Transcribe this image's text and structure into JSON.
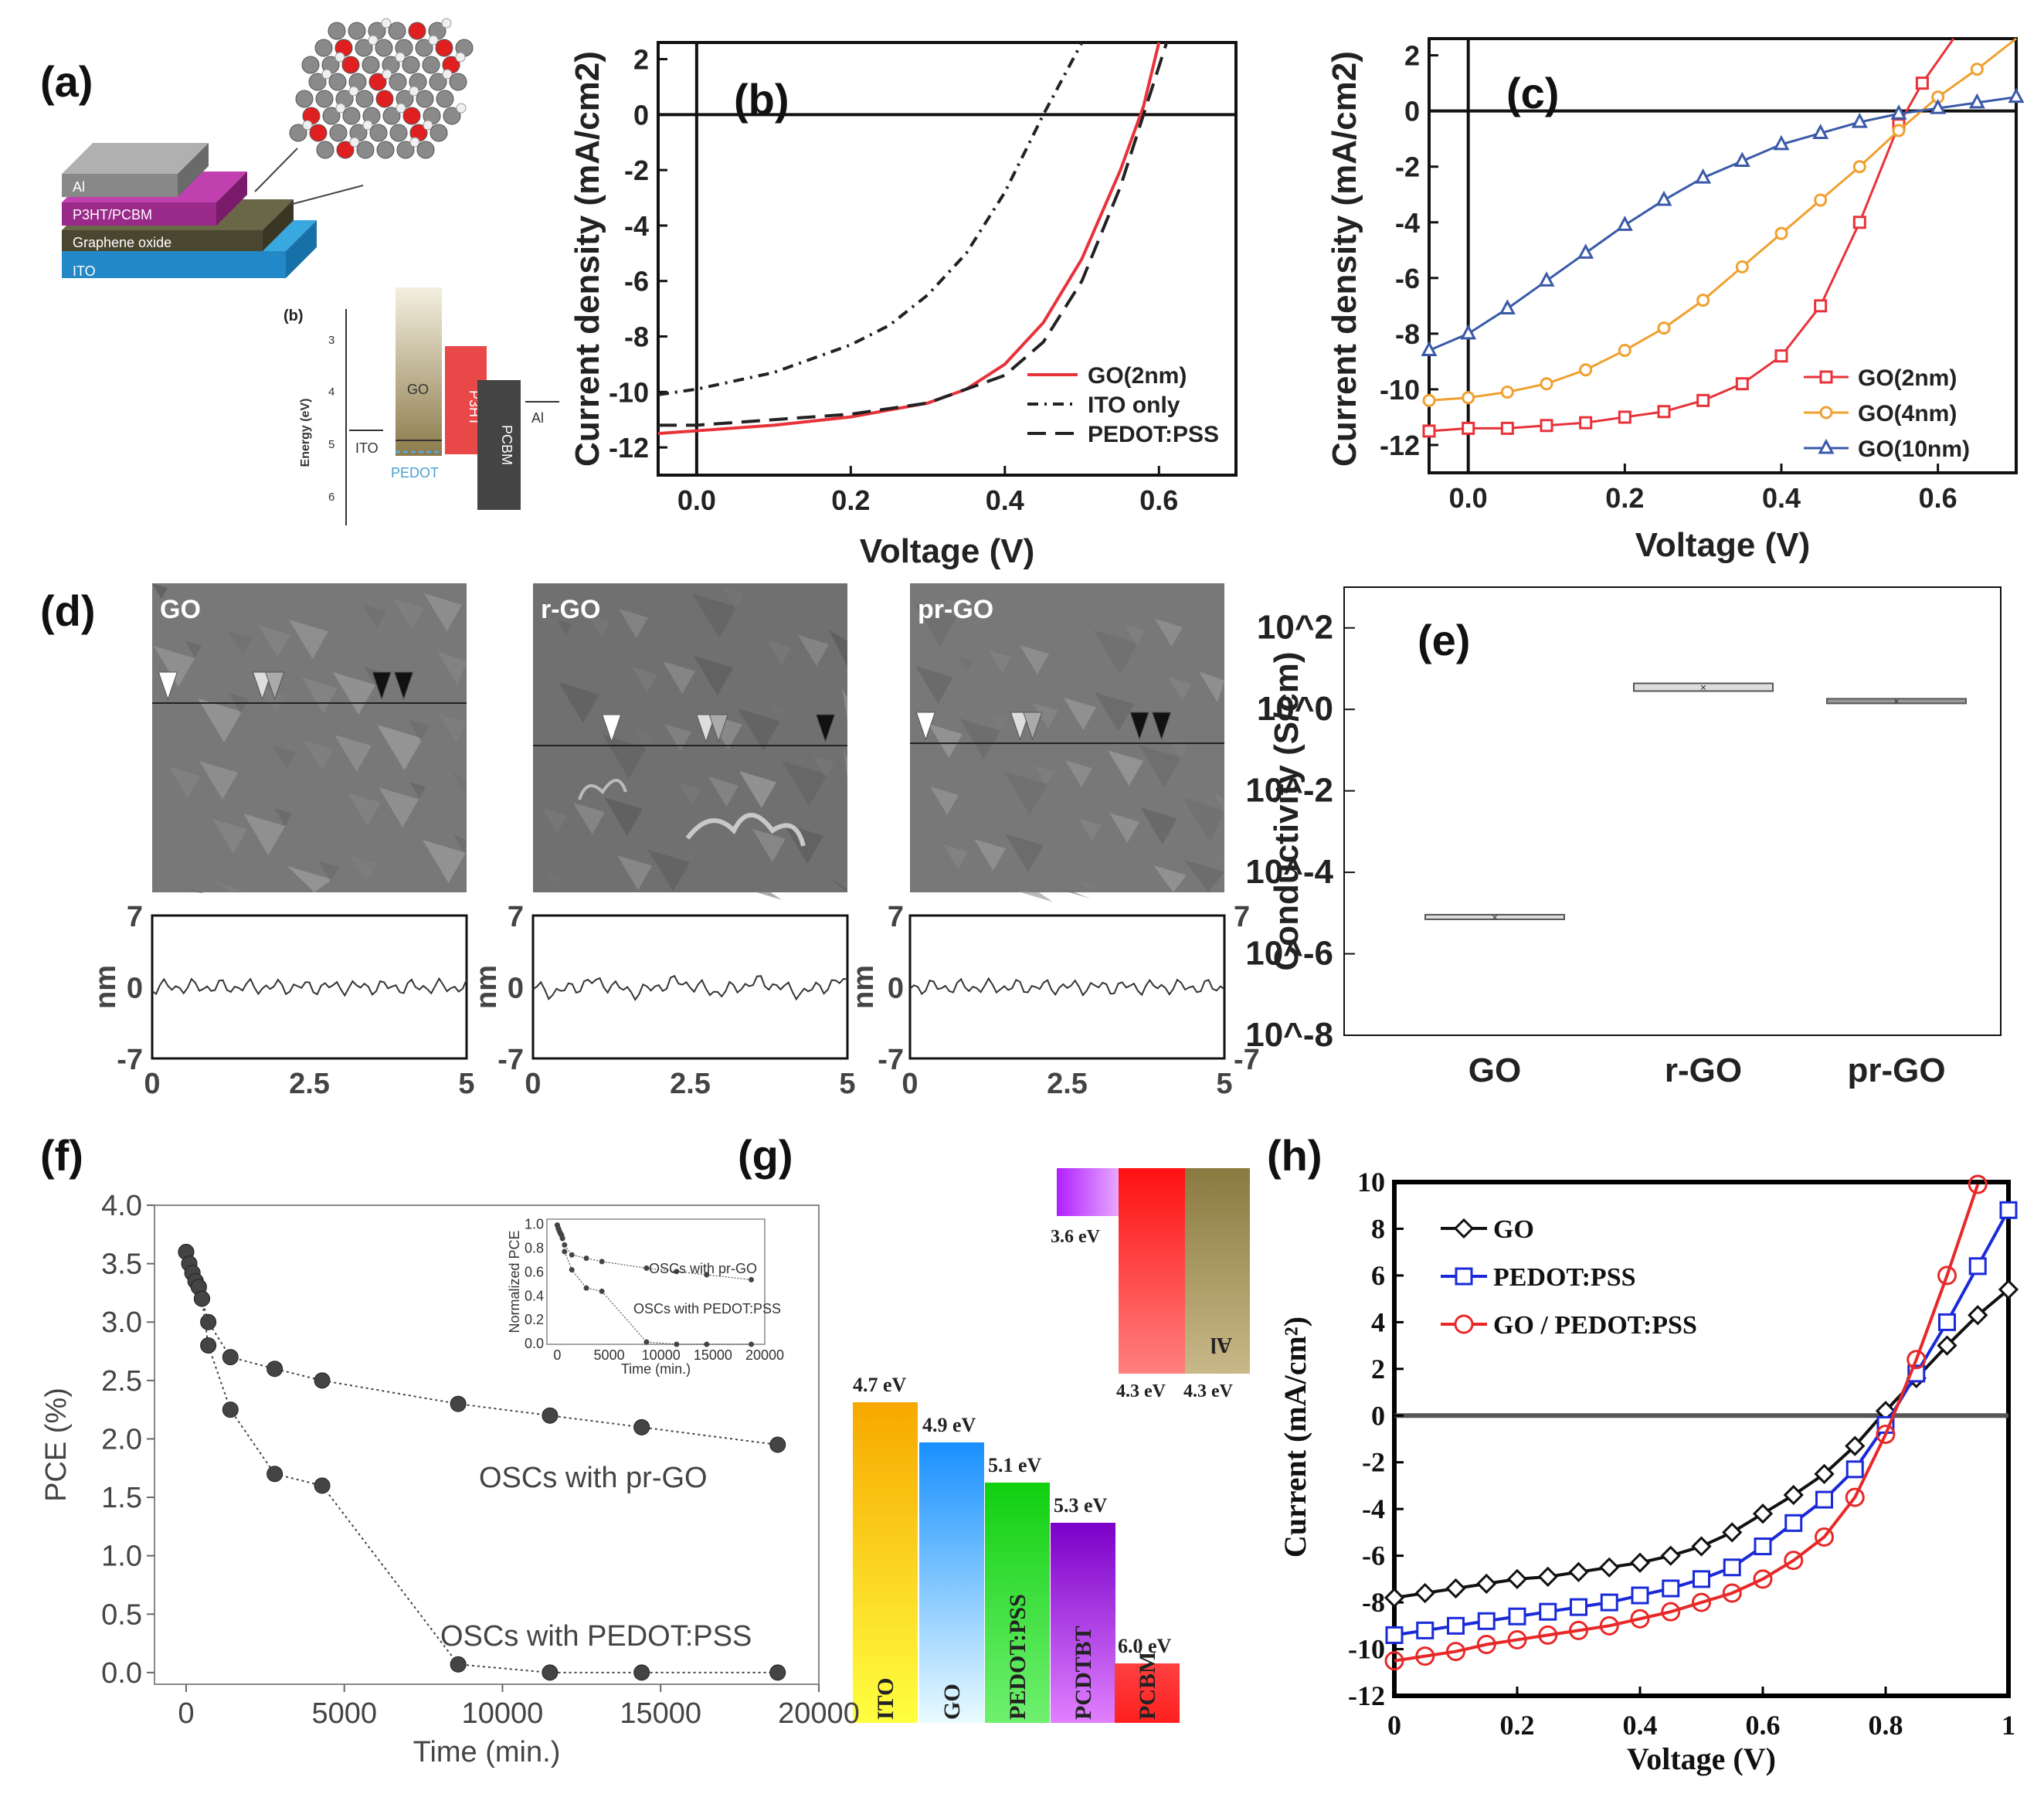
{
  "colors": {
    "red": "#e8323a",
    "orange": "#f0a030",
    "blue": "#3a5aa8",
    "black": "#111111",
    "boxblue": "#1a2ad8",
    "boxred": "#e82828"
  },
  "panel_a": {
    "label": "(a)",
    "layers": [
      "Al",
      "P3HT/PCBM",
      "Graphene oxide",
      "ITO"
    ],
    "sub_label": "(b)",
    "energy_axis_label": "Energy (eV)",
    "energy_ticks": [
      "3",
      "4",
      "5",
      "6"
    ],
    "bars": [
      "ITO",
      "GO",
      "PEDOT",
      "P3HT",
      "PCBM",
      "Al"
    ]
  },
  "panel_d": {
    "label": "(d)",
    "images": [
      "GO",
      "r-GO",
      "pr-GO"
    ],
    "ylabel": "nm",
    "yticks": [
      "7",
      "0",
      "-7"
    ],
    "xticks": [
      "0",
      "2.5",
      "5"
    ]
  },
  "panel_g": {
    "label": "(g)",
    "bars": [
      {
        "name": "ITO",
        "energy": "4.7 eV",
        "level": 4.7
      },
      {
        "name": "GO",
        "energy": "4.9 eV",
        "level": 4.9
      },
      {
        "name": "PEDOT:PSS",
        "energy": "5.1 eV",
        "level": 5.1
      },
      {
        "name": "PCDTBT",
        "energy": "5.3 eV",
        "level": 5.3
      },
      {
        "name": "PCBM",
        "energy": "6.0 eV",
        "level": 6.0
      }
    ],
    "top_bars": [
      {
        "name": "",
        "energy": "3.6 eV",
        "level": 3.6
      },
      {
        "name": "",
        "energy": "4.3 eV",
        "level": 4.3
      },
      {
        "name": "Al",
        "energy": "4.3 eV",
        "level": 4.3
      }
    ]
  },
  "chart_data": [
    {
      "id": "b",
      "label": "(b)",
      "type": "line",
      "title": "",
      "xlabel": "Voltage (V)",
      "ylabel": "Current density (mA/cm2)",
      "xlim": [
        -0.05,
        0.7
      ],
      "ylim": [
        -13,
        2.6
      ],
      "xticks": [
        "0.0",
        "0.2",
        "0.4",
        "0.6"
      ],
      "yticks": [
        "2",
        "0",
        "-2",
        "-4",
        "-6",
        "-8",
        "-10",
        "-12"
      ],
      "legend_position": "bottom-right",
      "series": [
        {
          "name": "GO(2nm)",
          "style": "solid",
          "color": "#e8323a",
          "x": [
            -0.05,
            0.0,
            0.1,
            0.2,
            0.3,
            0.35,
            0.4,
            0.45,
            0.5,
            0.55,
            0.58,
            0.6
          ],
          "y": [
            -11.5,
            -11.4,
            -11.2,
            -10.9,
            -10.4,
            -9.9,
            -9.0,
            -7.5,
            -5.2,
            -2.0,
            0.3,
            2.6
          ]
        },
        {
          "name": "ITO only",
          "style": "dashdot",
          "color": "#222222",
          "x": [
            -0.05,
            0.0,
            0.1,
            0.2,
            0.25,
            0.3,
            0.35,
            0.4,
            0.45,
            0.5
          ],
          "y": [
            -10.1,
            -9.9,
            -9.3,
            -8.3,
            -7.6,
            -6.5,
            -5.0,
            -2.8,
            0.0,
            2.6
          ]
        },
        {
          "name": "PEDOT:PSS",
          "style": "dashed",
          "color": "#222222",
          "x": [
            -0.05,
            0.0,
            0.1,
            0.2,
            0.3,
            0.4,
            0.45,
            0.5,
            0.55,
            0.58,
            0.61
          ],
          "y": [
            -11.2,
            -11.2,
            -11.0,
            -10.8,
            -10.4,
            -9.4,
            -8.2,
            -6.0,
            -2.6,
            0.0,
            2.6
          ]
        }
      ]
    },
    {
      "id": "c",
      "label": "(c)",
      "type": "line",
      "title": "",
      "xlabel": "Voltage (V)",
      "ylabel": "Current density (mA/cm2)",
      "xlim": [
        -0.05,
        0.7
      ],
      "ylim": [
        -13,
        2.6
      ],
      "xticks": [
        "0.0",
        "0.2",
        "0.4",
        "0.6"
      ],
      "yticks": [
        "2",
        "0",
        "-2",
        "-4",
        "-6",
        "-8",
        "-10",
        "-12"
      ],
      "legend_position": "bottom-right",
      "series": [
        {
          "name": "GO(2nm)",
          "marker": "square",
          "color": "#e8323a",
          "x": [
            -0.05,
            0.0,
            0.05,
            0.1,
            0.15,
            0.2,
            0.25,
            0.3,
            0.35,
            0.4,
            0.45,
            0.5,
            0.55,
            0.58,
            0.62
          ],
          "y": [
            -11.5,
            -11.4,
            -11.4,
            -11.3,
            -11.2,
            -11.0,
            -10.8,
            -10.4,
            -9.8,
            -8.8,
            -7.0,
            -4.0,
            -0.5,
            1.0,
            2.6
          ]
        },
        {
          "name": "GO(4nm)",
          "marker": "circle",
          "color": "#f0a030",
          "x": [
            -0.05,
            0.0,
            0.05,
            0.1,
            0.15,
            0.2,
            0.25,
            0.3,
            0.35,
            0.4,
            0.45,
            0.5,
            0.55,
            0.6,
            0.65,
            0.7
          ],
          "y": [
            -10.4,
            -10.3,
            -10.1,
            -9.8,
            -9.3,
            -8.6,
            -7.8,
            -6.8,
            -5.6,
            -4.4,
            -3.2,
            -2.0,
            -0.7,
            0.5,
            1.5,
            2.6
          ]
        },
        {
          "name": "GO(10nm)",
          "marker": "triangle",
          "color": "#3a5aa8",
          "x": [
            -0.05,
            0.0,
            0.05,
            0.1,
            0.15,
            0.2,
            0.25,
            0.3,
            0.35,
            0.4,
            0.45,
            0.5,
            0.55,
            0.6,
            0.65,
            0.7
          ],
          "y": [
            -8.6,
            -8.0,
            -7.1,
            -6.1,
            -5.1,
            -4.1,
            -3.2,
            -2.4,
            -1.8,
            -1.2,
            -0.8,
            -0.4,
            -0.1,
            0.1,
            0.3,
            0.5
          ]
        }
      ]
    },
    {
      "id": "e",
      "label": "(e)",
      "type": "box",
      "title": "",
      "xlabel": "",
      "ylabel": "Conductivity (S/cm)",
      "categories": [
        "GO",
        "r-GO",
        "pr-GO"
      ],
      "yscale": "log",
      "ylim_exp": [
        -8,
        3
      ],
      "yticks": [
        "10^2",
        "10^0",
        "10^-2",
        "10^-4",
        "10^-6",
        "10^-8"
      ],
      "values": [
        8e-06,
        3.5,
        1.6
      ]
    },
    {
      "id": "f",
      "label": "(f)",
      "type": "line",
      "title": "",
      "xlabel": "Time (min.)",
      "ylabel": "PCE (%)",
      "xlim": [
        -1000,
        20000
      ],
      "ylim": [
        -0.1,
        4.0
      ],
      "xticks": [
        "0",
        "5000",
        "10000",
        "15000",
        "20000"
      ],
      "yticks": [
        "0.0",
        "0.5",
        "1.0",
        "1.5",
        "2.0",
        "2.5",
        "3.0",
        "3.5",
        "4.0"
      ],
      "annotations": [
        "OSCs with pr-GO",
        "OSCs with PEDOT:PSS"
      ],
      "series": [
        {
          "name": "OSCs with pr-GO",
          "x": [
            0,
            100,
            200,
            300,
            400,
            500,
            700,
            1400,
            2800,
            4300,
            8600,
            11500,
            14400,
            18700
          ],
          "y": [
            3.6,
            3.5,
            3.42,
            3.35,
            3.3,
            3.2,
            3.0,
            2.7,
            2.6,
            2.5,
            2.3,
            2.2,
            2.1,
            1.95
          ]
        },
        {
          "name": "OSCs with PEDOT:PSS",
          "x": [
            0,
            100,
            200,
            300,
            400,
            500,
            700,
            1400,
            2800,
            4300,
            8600,
            11500,
            14400,
            18700
          ],
          "y": [
            3.6,
            3.5,
            3.42,
            3.35,
            3.3,
            3.2,
            2.8,
            2.25,
            1.7,
            1.6,
            0.07,
            0.0,
            0.0,
            0.0
          ]
        }
      ],
      "inset": {
        "xlabel": "Time (min.)",
        "ylabel": "Normalized PCE",
        "xticks": [
          "0",
          "5000",
          "10000",
          "15000",
          "20000"
        ],
        "yticks": [
          "1.0",
          "0.8",
          "0.6",
          "0.4",
          "0.2",
          "0.0"
        ],
        "annotations": [
          "OSCs with pr-GO",
          "OSCs with PEDOT:PSS"
        ],
        "xlim": [
          -1000,
          20000
        ],
        "ylim": [
          0,
          1.05
        ]
      }
    },
    {
      "id": "h",
      "label": "(h)",
      "type": "line",
      "title": "",
      "xlabel": "Voltage (V)",
      "ylabel": "Current (mA/cm²)",
      "xlim": [
        0,
        1
      ],
      "ylim": [
        -12,
        10
      ],
      "xticks": [
        "0",
        "0.2",
        "0.4",
        "0.6",
        "0.8",
        "1"
      ],
      "yticks": [
        "10",
        "8",
        "6",
        "4",
        "2",
        "0",
        "-2",
        "-4",
        "-6",
        "-8",
        "-10",
        "-12"
      ],
      "legend_position": "top-left",
      "series": [
        {
          "name": "GO",
          "marker": "diamond",
          "color": "#111111",
          "x": [
            0,
            0.05,
            0.1,
            0.15,
            0.2,
            0.25,
            0.3,
            0.35,
            0.4,
            0.45,
            0.5,
            0.55,
            0.6,
            0.65,
            0.7,
            0.75,
            0.8,
            0.85,
            0.9,
            0.95,
            1.0
          ],
          "y": [
            -7.8,
            -7.6,
            -7.4,
            -7.2,
            -7.0,
            -6.9,
            -6.7,
            -6.5,
            -6.3,
            -6.0,
            -5.6,
            -5.0,
            -4.2,
            -3.4,
            -2.5,
            -1.3,
            0.2,
            1.6,
            3.0,
            4.3,
            5.4
          ]
        },
        {
          "name": "PEDOT:PSS",
          "marker": "square",
          "color": "#1a2ad8",
          "x": [
            0,
            0.05,
            0.1,
            0.15,
            0.2,
            0.25,
            0.3,
            0.35,
            0.4,
            0.45,
            0.5,
            0.55,
            0.6,
            0.65,
            0.7,
            0.75,
            0.8,
            0.85,
            0.9,
            0.95,
            1.0
          ],
          "y": [
            -9.4,
            -9.2,
            -9.0,
            -8.8,
            -8.6,
            -8.4,
            -8.2,
            -8.0,
            -7.7,
            -7.4,
            -7.0,
            -6.5,
            -5.6,
            -4.6,
            -3.6,
            -2.3,
            -0.4,
            1.8,
            4.0,
            6.4,
            8.8
          ]
        },
        {
          "name": "GO / PEDOT:PSS",
          "marker": "circle",
          "color": "#e82828",
          "x": [
            0,
            0.05,
            0.1,
            0.15,
            0.2,
            0.25,
            0.3,
            0.35,
            0.4,
            0.45,
            0.5,
            0.55,
            0.6,
            0.65,
            0.7,
            0.75,
            0.8,
            0.85,
            0.9,
            0.95
          ],
          "y": [
            -10.5,
            -10.3,
            -10.1,
            -9.8,
            -9.6,
            -9.4,
            -9.2,
            -9.0,
            -8.7,
            -8.4,
            -8.0,
            -7.6,
            -7.0,
            -6.2,
            -5.2,
            -3.5,
            -0.8,
            2.4,
            6.0,
            9.9
          ]
        }
      ]
    }
  ]
}
